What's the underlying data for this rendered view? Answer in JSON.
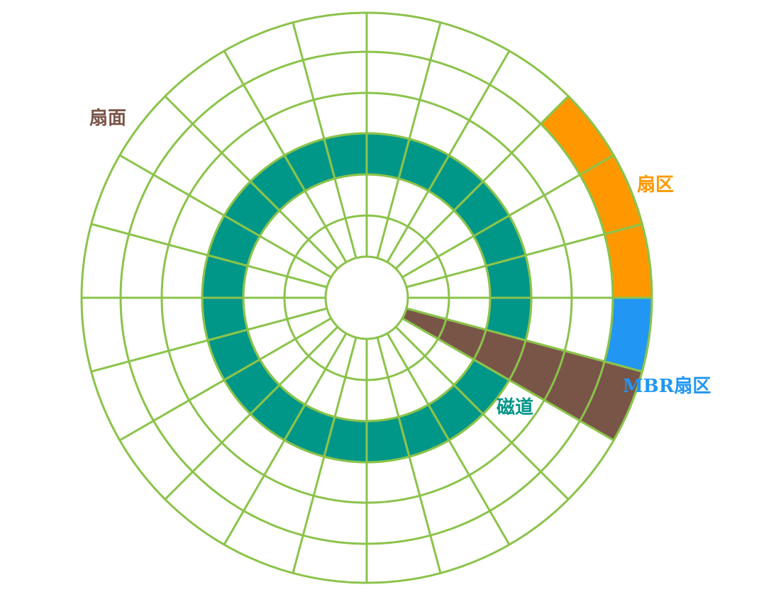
{
  "labels": {
    "surface": "扇面",
    "sector": "扇区",
    "mbr_sector": "MBR扇区",
    "track": "磁道"
  },
  "colors": {
    "grid": "#8BC34A",
    "background": "#ffffff",
    "surface": "#795548",
    "sector": "#FF9800",
    "mbr_sector": "#2196F3",
    "track": "#009688"
  },
  "disk": {
    "sectors_per_track": 24,
    "ring_count": 7
  },
  "highlights": {
    "track_ring": 3,
    "surface_wedge": 22,
    "sector_ring": 6,
    "sector_cells": [
      0,
      1,
      2
    ],
    "mbr_cell": 23
  }
}
